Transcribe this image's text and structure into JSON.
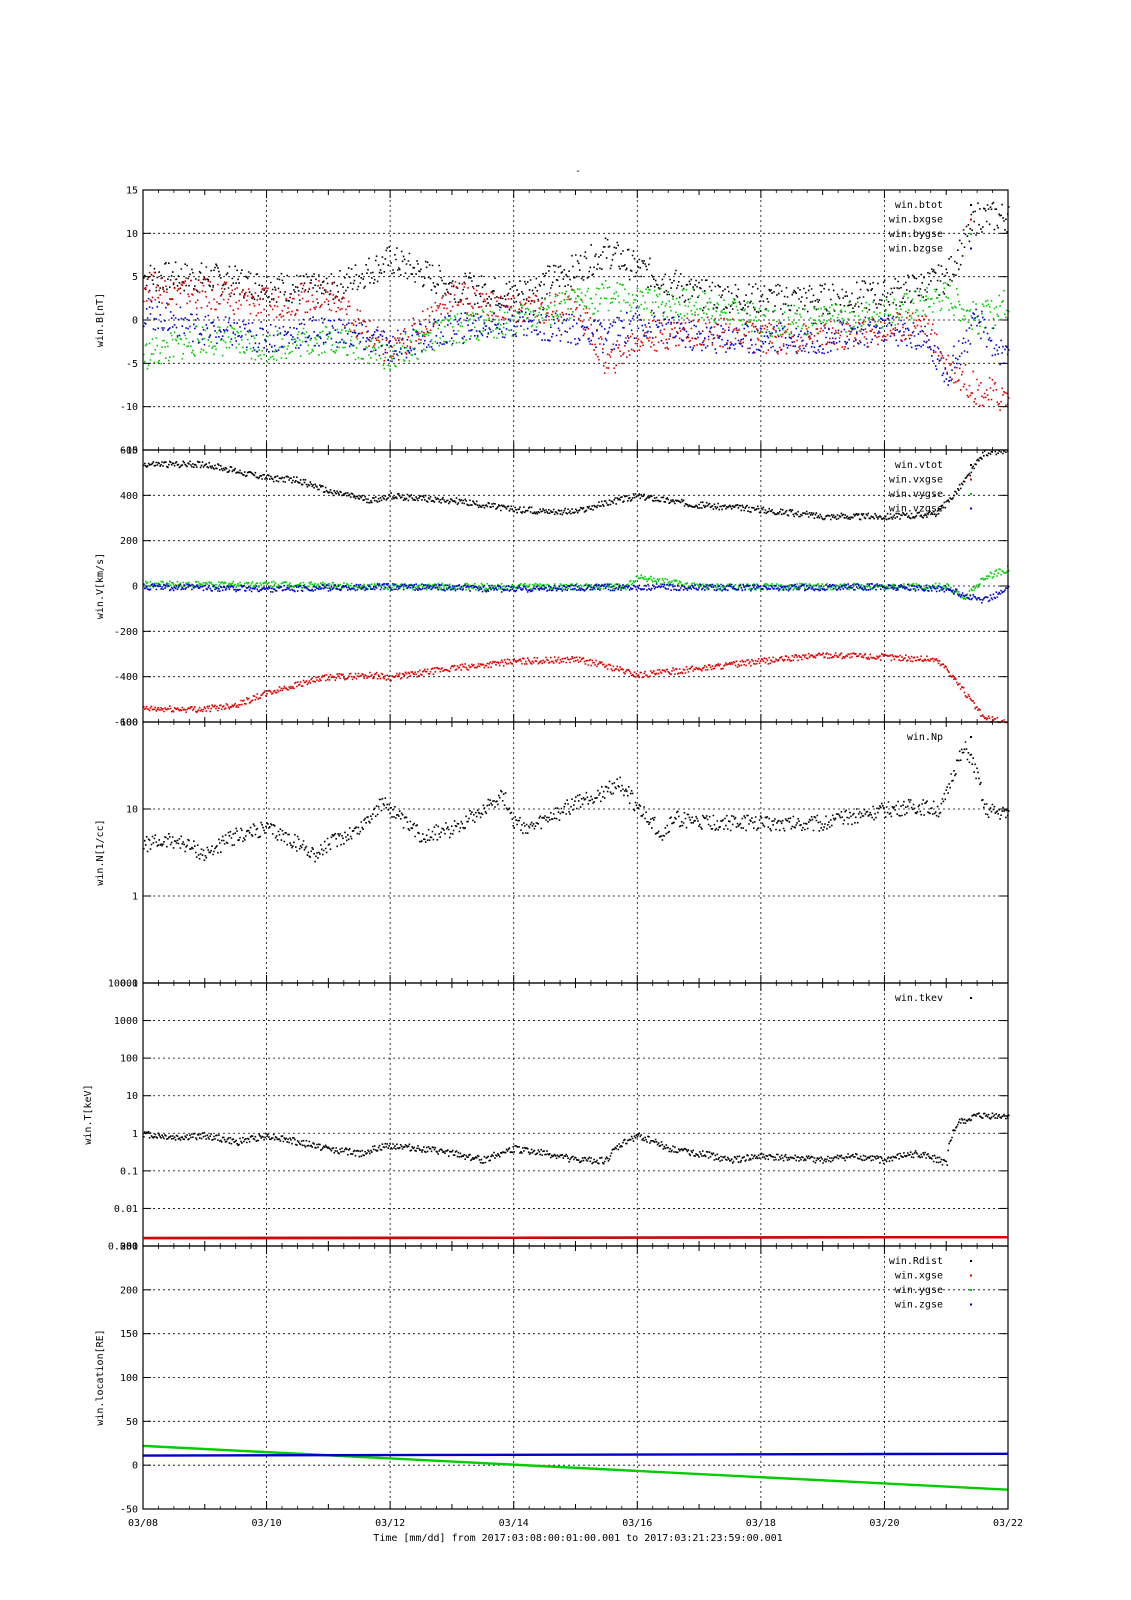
{
  "figure": {
    "title": "-",
    "xaxis_label": "Time [mm/dd]  from 2017:03:08:00:01:00.001  to  2017:03:21:23:59:00.001",
    "x_ticks": [
      "03/08",
      "03/10",
      "03/12",
      "03/14",
      "03/16",
      "03/18",
      "03/20",
      "03/22"
    ]
  },
  "colors": {
    "black": "#000000",
    "red": "#dd0000",
    "green": "#00cc00",
    "blue": "#0000cc",
    "grid": "#000000"
  },
  "chart_data": [
    {
      "type": "scatter",
      "ylabel": "win.B[nT]",
      "x_unit": "days since 03/08",
      "xlim": [
        0,
        14
      ],
      "ylim": [
        -15,
        15
      ],
      "y_ticks": [
        "15",
        "10",
        "5",
        "0",
        "-5",
        "-10",
        "-15"
      ],
      "legend_position": "top-right",
      "series": [
        {
          "name": "win.btot",
          "color": "black",
          "x": [
            0,
            1,
            2,
            3,
            4,
            5,
            6,
            7,
            7.5,
            8,
            9,
            10,
            11,
            12,
            12.6,
            13,
            13.5,
            14
          ],
          "y": [
            5,
            5,
            4,
            3.5,
            7,
            4,
            3,
            6,
            8,
            6,
            3,
            2.5,
            2.5,
            3,
            4,
            5,
            12,
            12
          ]
        },
        {
          "name": "win.bxgse",
          "color": "red",
          "x": [
            0,
            1,
            2,
            3,
            4,
            5,
            6,
            7,
            7.5,
            8,
            9,
            10,
            11,
            12,
            12.6,
            13,
            13.5,
            14
          ],
          "y": [
            4,
            3,
            2,
            3,
            -4,
            3,
            1,
            2,
            -5,
            -2,
            -1,
            -2,
            -2,
            -1,
            0,
            -5,
            -8,
            -9
          ]
        },
        {
          "name": "win.bygse",
          "color": "green",
          "x": [
            0,
            1,
            2,
            3,
            4,
            5,
            6,
            7,
            7.5,
            8,
            9,
            10,
            11,
            12,
            12.6,
            13,
            13.5,
            14
          ],
          "y": [
            -4,
            -2,
            -3,
            -2,
            -4,
            -1,
            0,
            2,
            3,
            2,
            2,
            0,
            0,
            1,
            2,
            3,
            0,
            2
          ]
        },
        {
          "name": "win.bzgse",
          "color": "blue",
          "x": [
            0,
            1,
            2,
            3,
            4,
            5,
            6,
            7,
            7.5,
            8,
            9,
            10,
            11,
            12,
            12.6,
            13,
            13.5,
            14
          ],
          "y": [
            1,
            -1,
            -2,
            -1,
            -3,
            -1,
            0,
            -1,
            -2,
            0,
            -2,
            -2,
            -2,
            -1,
            -2,
            -6,
            0,
            -5
          ]
        }
      ]
    },
    {
      "type": "scatter",
      "ylabel": "win.V[km/s]",
      "x_unit": "days since 03/08",
      "xlim": [
        0,
        14
      ],
      "ylim": [
        -600,
        600
      ],
      "y_ticks": [
        "600",
        "400",
        "200",
        "0",
        "-200",
        "-400",
        "-600"
      ],
      "legend_position": "top-right",
      "series": [
        {
          "name": "win.vtot",
          "color": "black",
          "x": [
            0,
            1,
            1.5,
            2,
            2.5,
            3,
            3.7,
            4,
            5,
            6,
            7,
            7.5,
            8,
            9,
            10,
            11,
            12,
            12.8,
            13,
            13.3,
            13.6,
            14
          ],
          "y": [
            540,
            540,
            510,
            480,
            470,
            420,
            380,
            400,
            380,
            340,
            330,
            370,
            400,
            360,
            340,
            310,
            310,
            320,
            370,
            470,
            590,
            600
          ]
        },
        {
          "name": "win.vxgse",
          "color": "red",
          "x": [
            0,
            1,
            1.5,
            2,
            2.5,
            3,
            3.7,
            4,
            5,
            6,
            7,
            7.5,
            8,
            9,
            10,
            11,
            12,
            12.8,
            13,
            13.3,
            13.6,
            14
          ],
          "y": [
            -540,
            -540,
            -520,
            -470,
            -430,
            -400,
            -390,
            -400,
            -360,
            -330,
            -320,
            -350,
            -390,
            -360,
            -330,
            -300,
            -310,
            -320,
            -360,
            -470,
            -580,
            -600
          ]
        },
        {
          "name": "win.vygse",
          "color": "green",
          "x": [
            0,
            2,
            4,
            6,
            7.8,
            8,
            8.5,
            9,
            11,
            12,
            13,
            13.3,
            13.6,
            14
          ],
          "y": [
            10,
            10,
            0,
            0,
            0,
            40,
            20,
            0,
            0,
            0,
            0,
            -50,
            40,
            80
          ]
        },
        {
          "name": "win.vzgse",
          "color": "blue",
          "x": [
            0,
            2,
            4,
            6,
            8,
            10,
            12,
            13,
            13.3,
            13.6,
            14
          ],
          "y": [
            0,
            -10,
            0,
            -10,
            0,
            -5,
            0,
            -10,
            -40,
            -60,
            -10
          ]
        }
      ]
    },
    {
      "type": "scatter",
      "ylabel": "win.N[1/cc]",
      "x_unit": "days since 03/08",
      "xlim": [
        0,
        14
      ],
      "ylim": [
        0.1,
        100
      ],
      "yscale": "log",
      "y_ticks": [
        "100",
        "10",
        "1",
        "0.1"
      ],
      "legend_position": "top-right",
      "series": [
        {
          "name": "win.Np",
          "color": "black",
          "x": [
            0,
            0.5,
            1,
            1.5,
            2,
            2.5,
            2.8,
            3,
            3.5,
            3.9,
            4.2,
            4.5,
            5,
            5.5,
            5.8,
            6,
            6.3,
            6.7,
            7,
            7.4,
            7.7,
            8,
            8.4,
            8.6,
            9,
            10,
            11,
            12,
            12.5,
            12.9,
            13,
            13.3,
            13.6,
            14
          ],
          "y": [
            4,
            4.5,
            3,
            5,
            6,
            4,
            3,
            4,
            6,
            12,
            7,
            5,
            6,
            10,
            15,
            7,
            6,
            9,
            12,
            15,
            20,
            10,
            5,
            8,
            7,
            7,
            7,
            10,
            11,
            10,
            15,
            50,
            10,
            9
          ]
        }
      ]
    },
    {
      "type": "scatter",
      "ylabel": "win.T[keV]",
      "x_unit": "days since 03/08",
      "xlim": [
        0,
        14
      ],
      "ylim": [
        0.001,
        10000
      ],
      "yscale": "log",
      "y_ticks": [
        "10000",
        "1000",
        "100",
        "10",
        "1",
        "0.1",
        "0.01",
        "0.001"
      ],
      "overlapping_tick_labels": "300",
      "legend_position": "top-right",
      "series": [
        {
          "name": "win.tkev",
          "color": "black",
          "x": [
            0,
            0.5,
            1,
            1.5,
            2,
            2.5,
            3,
            3.5,
            4,
            4.5,
            5,
            5.5,
            6,
            6.5,
            7,
            7.5,
            8,
            8.5,
            9,
            9.5,
            10,
            11,
            11.5,
            12,
            12.5,
            12.9,
            13,
            13.2,
            13.5,
            14
          ],
          "y": [
            1,
            0.8,
            0.9,
            0.6,
            0.9,
            0.6,
            0.4,
            0.3,
            0.5,
            0.4,
            0.3,
            0.2,
            0.4,
            0.3,
            0.2,
            0.2,
            0.9,
            0.4,
            0.3,
            0.2,
            0.25,
            0.2,
            0.25,
            0.2,
            0.3,
            0.2,
            0.15,
            2,
            3,
            3
          ]
        }
      ]
    },
    {
      "type": "line",
      "ylabel": "win.location[RE]",
      "x_unit": "days since 03/08",
      "xlim": [
        0,
        14
      ],
      "ylim": [
        -50,
        250
      ],
      "y_ticks": [
        "250",
        "200",
        "150",
        "100",
        "50",
        "0",
        "-50"
      ],
      "legend_position": "top-right",
      "series": [
        {
          "name": "win.Rdist",
          "color": "black",
          "x": [
            0,
            14
          ],
          "y": [
            259,
            260
          ]
        },
        {
          "name": "win.xgse",
          "color": "red",
          "x": [
            0,
            14
          ],
          "y": [
            259,
            260
          ]
        },
        {
          "name": "win.ygse",
          "color": "green",
          "x": [
            0,
            14
          ],
          "y": [
            22,
            -28
          ]
        },
        {
          "name": "win.zgse",
          "color": "blue",
          "x": [
            0,
            14
          ],
          "y": [
            11,
            13
          ]
        }
      ]
    }
  ]
}
